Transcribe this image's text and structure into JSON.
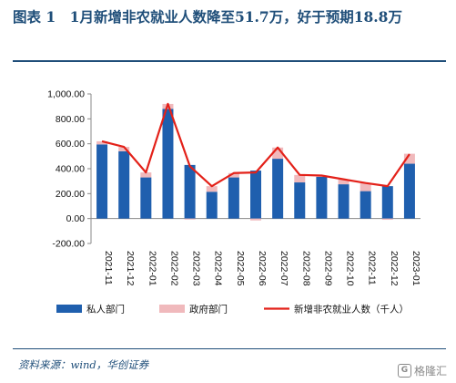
{
  "figure": {
    "title": "图表 1　1月新增非农就业人数降至51.7万，好于预期18.8万",
    "source": "资料来源：wind，华创证券"
  },
  "watermark": {
    "text": "格隆汇",
    "logo_icon": "g-logo-icon"
  },
  "chart_data": {
    "type": "bar",
    "stacked": true,
    "categories": [
      "2021-11",
      "2021-12",
      "2022-01",
      "2022-02",
      "2022-03",
      "2022-04",
      "2022-05",
      "2022-06",
      "2022-07",
      "2022-08",
      "2022-09",
      "2022-10",
      "2022-11",
      "2022-12",
      "2023-01"
    ],
    "series": [
      {
        "name": "私人部门",
        "kind": "bar",
        "color": "#1f5fae",
        "values": [
          595,
          540,
          330,
          880,
          430,
          215,
          330,
          385,
          480,
          290,
          335,
          275,
          220,
          260,
          440
        ]
      },
      {
        "name": "政府部门",
        "kind": "bar",
        "color": "#f0b9bc",
        "values": [
          25,
          35,
          40,
          40,
          -8,
          45,
          35,
          -15,
          90,
          60,
          10,
          40,
          65,
          -10,
          80
        ]
      },
      {
        "name": "新增非农就业人数（千人）",
        "kind": "line",
        "color": "#e32119",
        "values": [
          620,
          575,
          370,
          920,
          420,
          260,
          365,
          370,
          570,
          350,
          345,
          315,
          285,
          260,
          517
        ]
      }
    ],
    "ylim": [
      -200,
      1000
    ],
    "yticks": [
      "1,000.00",
      "800.00",
      "600.00",
      "400.00",
      "200.00",
      "0.00",
      "-200.00"
    ],
    "ytick_values": [
      1000,
      800,
      600,
      400,
      200,
      0,
      -200
    ],
    "grid": false,
    "legend_position": "bottom"
  }
}
